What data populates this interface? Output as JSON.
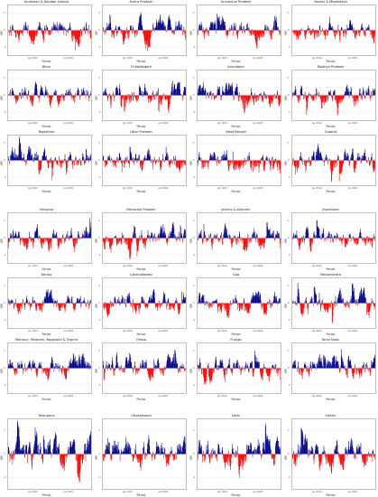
{
  "page": {
    "background": "#ffffff",
    "positive_color": "#00008b",
    "negative_color": "#ff0000",
    "grid_color": "#e6e6e6"
  },
  "chart_data": [
    {
      "type": "area",
      "title": "Andaman & Nicobar Islands",
      "ylabel": "SPI",
      "xlabel": "Period",
      "x_ticks": [
        "Jan 2010",
        "Jan 2020"
      ],
      "y_ticks": [
        "2",
        "0",
        "-2"
      ],
      "ylim": [
        -3,
        3
      ],
      "grid": true
    },
    {
      "type": "area",
      "title": "Andra Pradesh",
      "ylabel": "SPI",
      "xlabel": "Period",
      "x_ticks": [
        "Jan 2010",
        "Jan 2020"
      ],
      "y_ticks": [
        "2",
        "0",
        "-2"
      ],
      "ylim": [
        -3,
        3
      ],
      "grid": true
    },
    {
      "type": "area",
      "title": "Arunachal Pradesh",
      "ylabel": "SPI",
      "xlabel": "Period",
      "x_ticks": [
        "Jan 2010",
        "Jan 2020"
      ],
      "y_ticks": [
        "2",
        "0",
        "-2"
      ],
      "ylim": [
        -3,
        3
      ],
      "grid": true
    },
    {
      "type": "area",
      "title": "Assam & Meghalaya",
      "ylabel": "SPI",
      "xlabel": "Period",
      "x_ticks": [
        "Jan 2010",
        "Jan 2020"
      ],
      "y_ticks": [
        "2",
        "0",
        "-2"
      ],
      "ylim": [
        -3,
        3
      ],
      "grid": true
    },
    {
      "type": "area",
      "title": "Bihar",
      "ylabel": "SPI",
      "xlabel": "Period",
      "x_ticks": [
        "Jan 2010",
        "Jan 2020"
      ],
      "y_ticks": [
        "2",
        "0",
        "-2"
      ],
      "ylim": [
        -3,
        3
      ],
      "grid": true
    },
    {
      "type": "area",
      "title": "Chhattisgarh",
      "ylabel": "SPI",
      "xlabel": "Period",
      "x_ticks": [
        "Jan 2010",
        "Jan 2020"
      ],
      "y_ticks": [
        "2",
        "0",
        "-2"
      ],
      "ylim": [
        -3,
        3
      ],
      "grid": true
    },
    {
      "type": "area",
      "title": "Karnataka",
      "ylabel": "SPI",
      "xlabel": "Period",
      "x_ticks": [
        "Jan 2010",
        "Jan 2020"
      ],
      "y_ticks": [
        "2",
        "0",
        "-2"
      ],
      "ylim": [
        -3,
        3
      ],
      "grid": true
    },
    {
      "type": "area",
      "title": "Madhya Pradesh",
      "ylabel": "SPI",
      "xlabel": "Period",
      "x_ticks": [
        "Jan 2010",
        "Jan 2020"
      ],
      "y_ticks": [
        "2",
        "0",
        "-2"
      ],
      "ylim": [
        -3,
        3
      ],
      "grid": true
    },
    {
      "type": "area",
      "title": "Rajasthan",
      "ylabel": "SPI",
      "xlabel": "Period",
      "x_ticks": [
        "Jan 2010",
        "Jan 2020"
      ],
      "y_ticks": [
        "2",
        "0",
        "-2"
      ],
      "ylim": [
        -3,
        3
      ],
      "grid": true
    },
    {
      "type": "area",
      "title": "Uttar Pradesh",
      "ylabel": "SPI",
      "xlabel": "Period",
      "x_ticks": [
        "Jan 2010",
        "Jan 2020"
      ],
      "y_ticks": [
        "2",
        "0",
        "-2"
      ],
      "ylim": [
        -3,
        3
      ],
      "grid": true
    },
    {
      "type": "area",
      "title": "West Bengal",
      "ylabel": "SPI",
      "xlabel": "Period",
      "x_ticks": [
        "Jan 2010",
        "Jan 2020"
      ],
      "y_ticks": [
        "2",
        "0",
        "-2"
      ],
      "ylim": [
        -3,
        3
      ],
      "grid": true
    },
    {
      "type": "area",
      "title": "Gujarat",
      "ylabel": "SPI",
      "xlabel": "Period",
      "x_ticks": [
        "Jan 2010",
        "Jan 2020"
      ],
      "y_ticks": [
        "2",
        "0",
        "-2"
      ],
      "ylim": [
        -3,
        3
      ],
      "grid": true
    },
    {
      "type": "area",
      "title": "Haryana",
      "ylabel": "SPI",
      "xlabel": "Period",
      "x_ticks": [
        "Jan 2010",
        "Jan 2020"
      ],
      "y_ticks": [
        "2",
        "0",
        "-2"
      ],
      "ylim": [
        -3,
        3
      ],
      "grid": true
    },
    {
      "type": "area",
      "title": "Himachal Pradesh",
      "ylabel": "SPI",
      "xlabel": "Period",
      "x_ticks": [
        "Jan 2010",
        "Jan 2020"
      ],
      "y_ticks": [
        "2",
        "0",
        "-2"
      ],
      "ylim": [
        -3,
        3
      ],
      "grid": true
    },
    {
      "type": "area",
      "title": "Jammu & Kashmir",
      "ylabel": "SPI",
      "xlabel": "Period",
      "x_ticks": [
        "Jan 2010",
        "Jan 2020"
      ],
      "y_ticks": [
        "2",
        "0",
        "-2"
      ],
      "ylim": [
        -3,
        3
      ],
      "grid": true
    },
    {
      "type": "area",
      "title": "Jharkhand",
      "ylabel": "SPI",
      "xlabel": "Period",
      "x_ticks": [
        "Jan 2010",
        "Jan 2020"
      ],
      "y_ticks": [
        "2",
        "0",
        "-2"
      ],
      "ylim": [
        -3,
        3
      ],
      "grid": true
    },
    {
      "type": "area",
      "title": "Kerala",
      "ylabel": "SPI",
      "xlabel": "Period",
      "x_ticks": [
        "Jan 2010",
        "Jan 2020"
      ],
      "y_ticks": [
        "2",
        "0",
        "-2"
      ],
      "ylim": [
        -3,
        3
      ],
      "grid": true
    },
    {
      "type": "area",
      "title": "Lakshadweep",
      "ylabel": "SPI",
      "xlabel": "Period",
      "x_ticks": [
        "Jan 2010",
        "Jan 2020"
      ],
      "y_ticks": [
        "2",
        "0",
        "-2"
      ],
      "ylim": [
        -3,
        3
      ],
      "grid": true
    },
    {
      "type": "area",
      "title": "Goa",
      "ylabel": "SPI",
      "xlabel": "Period",
      "x_ticks": [
        "Jan 2010",
        "Jan 2020"
      ],
      "y_ticks": [
        "2",
        "0",
        "-2"
      ],
      "ylim": [
        -3,
        3
      ],
      "grid": true
    },
    {
      "type": "area",
      "title": "Maharashtra",
      "ylabel": "SPI",
      "xlabel": "Period",
      "x_ticks": [
        "Jan 2010",
        "Jan 2020"
      ],
      "y_ticks": [
        "2",
        "0",
        "-2"
      ],
      "ylim": [
        -3,
        3
      ],
      "grid": true
    },
    {
      "type": "area",
      "title": "Manipur, Mizoram, Nagaland & Tripura",
      "ylabel": "SPI",
      "xlabel": "Period",
      "x_ticks": [
        "Jan 2010",
        "Jan 2020"
      ],
      "y_ticks": [
        "2",
        "0",
        "-2"
      ],
      "ylim": [
        -3,
        3
      ],
      "grid": true
    },
    {
      "type": "area",
      "title": "Orissa",
      "ylabel": "SPI",
      "xlabel": "Period",
      "x_ticks": [
        "Jan 2010",
        "Jan 2020"
      ],
      "y_ticks": [
        "2",
        "0",
        "-2"
      ],
      "ylim": [
        -3,
        3
      ],
      "grid": true
    },
    {
      "type": "area",
      "title": "Punjab",
      "ylabel": "SPI",
      "xlabel": "Period",
      "x_ticks": [
        "Jan 2010",
        "Jan 2020"
      ],
      "y_ticks": [
        "2",
        "0",
        "-2"
      ],
      "ylim": [
        -3,
        3
      ],
      "grid": true
    },
    {
      "type": "area",
      "title": "Tamil Nadu",
      "ylabel": "SPI",
      "xlabel": "Period",
      "x_ticks": [
        "Jan 2010",
        "Jan 2020"
      ],
      "y_ticks": [
        "2",
        "0",
        "-2"
      ],
      "ylim": [
        -3,
        3
      ],
      "grid": true
    },
    {
      "type": "area",
      "title": "Telangana",
      "ylabel": "SPI",
      "xlabel": "Period",
      "x_ticks": [
        "Jan 2010",
        "Jan 2020"
      ],
      "y_ticks": [
        "2",
        "0",
        "-2"
      ],
      "ylim": [
        -3,
        3
      ],
      "grid": true
    },
    {
      "type": "area",
      "title": "Uttarakhand",
      "ylabel": "SPI",
      "xlabel": "Period",
      "x_ticks": [
        "Jan 2010",
        "Jan 2020"
      ],
      "y_ticks": [
        "2",
        "0",
        "-2"
      ],
      "ylim": [
        -3,
        3
      ],
      "grid": true
    },
    {
      "type": "area",
      "title": "Delhi",
      "ylabel": "SPI",
      "xlabel": "Period",
      "x_ticks": [
        "Jan 2010",
        "Jan 2020"
      ],
      "y_ticks": [
        "2",
        "0",
        "-2"
      ],
      "ylim": [
        -3,
        3
      ],
      "grid": true
    },
    {
      "type": "area",
      "title": "Sikkim",
      "ylabel": "SPI",
      "xlabel": "Period",
      "x_ticks": [
        "Jan 2010",
        "Jan 2020"
      ],
      "y_ticks": [
        "2",
        "0",
        "-2"
      ],
      "ylim": [
        -3,
        3
      ],
      "grid": true
    }
  ]
}
